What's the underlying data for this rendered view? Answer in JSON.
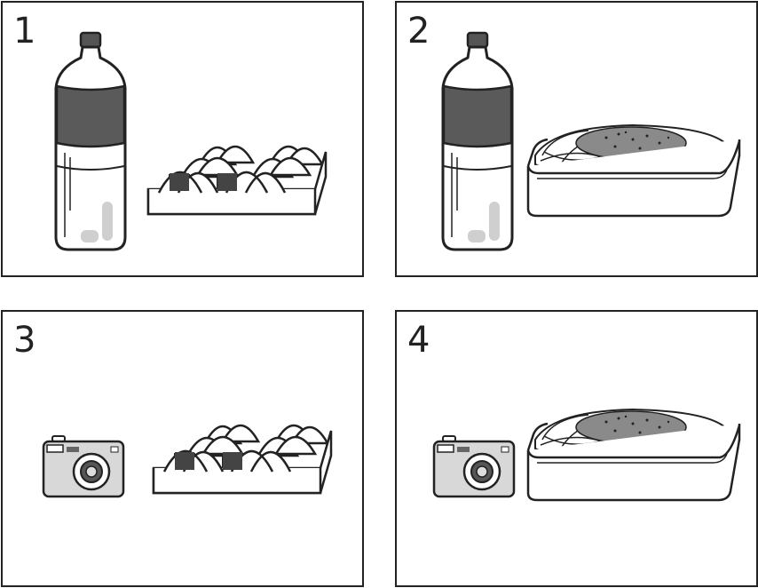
{
  "panels": [
    {
      "number": "1",
      "items": [
        "bottle-icon",
        "rice-ball-tray-icon"
      ]
    },
    {
      "number": "2",
      "items": [
        "bottle-icon",
        "yakisoba-tray-icon"
      ]
    },
    {
      "number": "3",
      "items": [
        "camera-icon",
        "rice-ball-tray-icon"
      ]
    },
    {
      "number": "4",
      "items": [
        "camera-icon",
        "yakisoba-tray-icon"
      ]
    }
  ],
  "colors": {
    "line": "#222222",
    "bottle_label": "#5a5a5a",
    "shade": "#cfcfcf",
    "noodle": "#8a8a8a"
  }
}
